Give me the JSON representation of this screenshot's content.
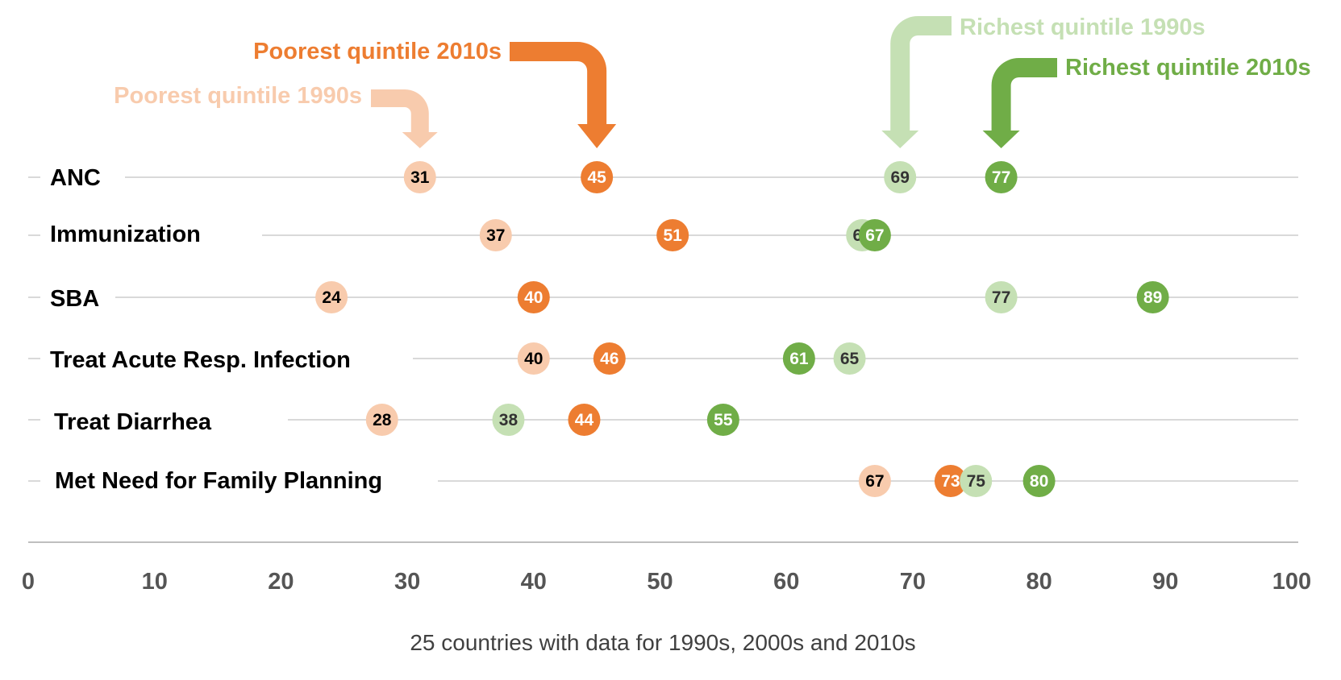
{
  "chart_data": {
    "type": "scatter",
    "xlabel": "25 countries with data for 1990s, 2000s and 2010s",
    "xlim": [
      0,
      100
    ],
    "xticks": [
      "0",
      "10",
      "20",
      "30",
      "40",
      "50",
      "60",
      "70",
      "80",
      "90",
      "100"
    ],
    "categories": [
      "ANC",
      "Immunization",
      "SBA",
      "Treat Acute Resp. Infection",
      "Treat Diarrhea",
      "Met Need for Family Planning"
    ],
    "series": [
      {
        "name": "Poorest quintile 1990s",
        "color": "#F8CBAD",
        "text_color": "#000000",
        "values": [
          31,
          37,
          24,
          40,
          28,
          67
        ]
      },
      {
        "name": "Poorest quintile 2010s",
        "color": "#ED7D31",
        "text_color": "#ffffff",
        "values": [
          45,
          51,
          40,
          46,
          44,
          73
        ]
      },
      {
        "name": "Richest quintile 1990s",
        "color": "#C5E0B4",
        "text_color": "#333333",
        "values": [
          69,
          66,
          77,
          65,
          38,
          75
        ]
      },
      {
        "name": "Richest quintile 2010s",
        "color": "#70AD47",
        "text_color": "#ffffff",
        "values": [
          77,
          67,
          89,
          61,
          55,
          80
        ]
      }
    ]
  }
}
